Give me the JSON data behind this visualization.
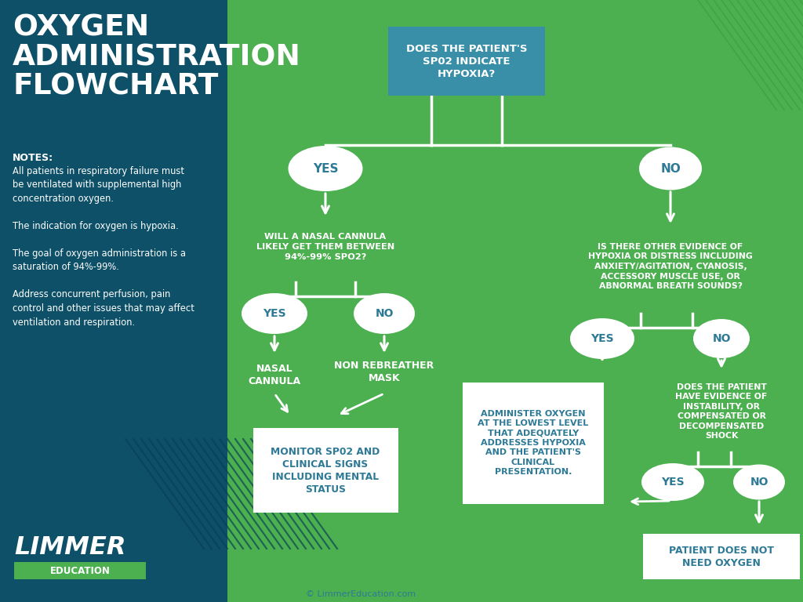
{
  "bg_left_color": "#0d5068",
  "bg_right_color": "#4caf50",
  "title_text": "OXYGEN\nADMINISTRATION\nFLOWCHART",
  "title_color": "#ffffff",
  "notes_title": "NOTES:",
  "notes_lines": [
    "All patients in respiratory failure must",
    "be ventilated with supplemental high",
    "concentration oxygen.",
    "",
    "The indication for oxygen is hypoxia.",
    "",
    "The goal of oxygen administration is a",
    "saturation of 94%-99%.",
    "",
    "Address concurrent perfusion, pain",
    "control and other issues that may affect",
    "ventilation and respiration."
  ],
  "logo_text": "LIMMER",
  "logo_sub": "EDUCATION",
  "logo_bar_color": "#4caf50",
  "copyright": "© LimmerEducation.com",
  "box_color_teal": "#3a8fa8",
  "box_color_white": "#ffffff",
  "text_color_teal": "#2e7a96",
  "text_color_white": "#ffffff",
  "text_color_dark": "#2e7a96",
  "oval_color": "#ffffff",
  "oval_text_color": "#2e7a96",
  "line_color": "#ffffff",
  "arrow_color": "#ffffff",
  "diag_right_color": "#3a9e3a",
  "diag_left_color": "#0a4055",
  "node_q1": "DOES THE PATIENT'S\nSP02 INDICATE\nHYPOXIA?",
  "node_q2": "WILL A NASAL CANNULA\nLIKELY GET THEM BETWEEN\n94%-99% SPO2?",
  "node_q3": "IS THERE OTHER EVIDENCE OF\nHYPOXIA OR DISTRESS INCLUDING\nANXIETY/AGITATION, CYANOSIS,\nACCESSORY MUSCLE USE, OR\nABNORMAL BREATH SOUNDS?",
  "node_q4": "DOES THE PATIENT\nHAVE EVIDENCE OF\nINSTABILITY, OR\nCOMPENSATED OR\nDECOMPENSATED\nSHOCK",
  "node_r1": "NASAL\nCANNULA",
  "node_r2": "NON REBREATHER\nMASK",
  "node_r3": "MONITOR SP02 AND\nCLINICAL SIGNS\nINCLUDING MENTAL\nSTATUS",
  "node_r4": "ADMINISTER OXYGEN\nAT THE LOWEST LEVEL\nTHAT ADEQUATELY\nADDRESSES HYPOXIA\nAND THE PATIENT'S\nCLINICAL\nPRESENTATION.",
  "node_r5": "PATIENT DOES NOT\nNEED OXYGEN",
  "yes_label": "YES",
  "no_label": "NO"
}
